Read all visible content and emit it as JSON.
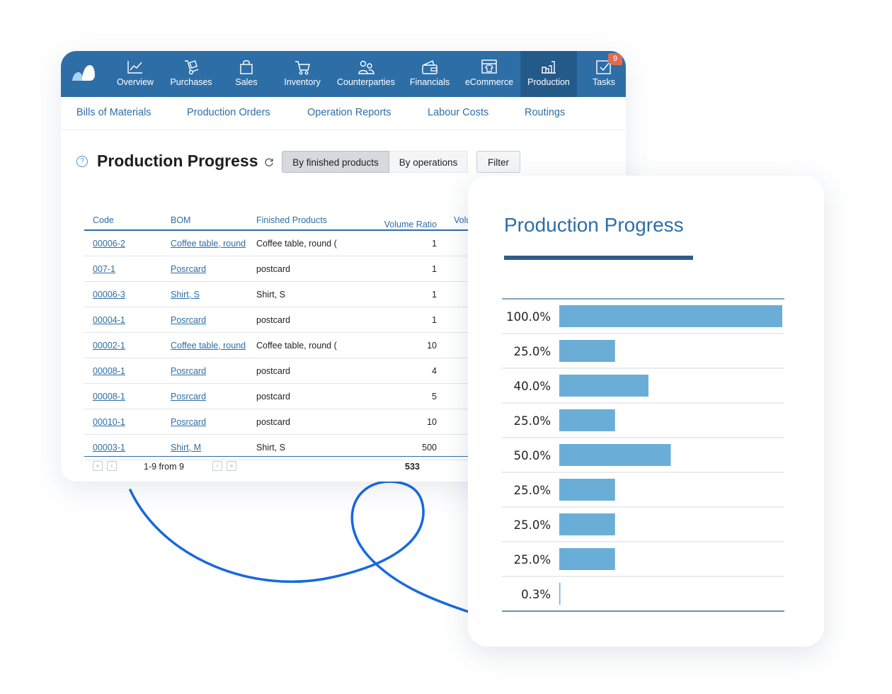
{
  "colors": {
    "nav_bg": "#2e6ea6",
    "nav_active": "#245a8a",
    "link": "#2e6ea6",
    "bar": "#6aaed8",
    "swirl": "#1769e0"
  },
  "nav": {
    "items": [
      {
        "label": "Overview",
        "icon": "chart-line-icon"
      },
      {
        "label": "Purchases",
        "icon": "hand-truck-icon"
      },
      {
        "label": "Sales",
        "icon": "shopping-bag-icon"
      },
      {
        "label": "Inventory",
        "icon": "cart-icon"
      },
      {
        "label": "Counterparties",
        "icon": "people-icon"
      },
      {
        "label": "Financials",
        "icon": "wallet-icon"
      },
      {
        "label": "eCommerce",
        "icon": "storefront-icon"
      },
      {
        "label": "Production",
        "icon": "factory-icon"
      },
      {
        "label": "Tasks",
        "icon": "checkbox-icon"
      }
    ],
    "tasks_badge": "9"
  },
  "subnav": {
    "items": [
      "Bills of Materials",
      "Production Orders",
      "Operation Reports",
      "Labour Costs",
      "Routings"
    ]
  },
  "page": {
    "title": "Production Progress",
    "help": "?",
    "view_by_finished": "By finished products",
    "view_by_operations": "By operations",
    "filter_label": "Filter"
  },
  "table": {
    "headers": {
      "code": "Code",
      "bom": "BOM",
      "finished": "Finished Products",
      "ratio": "Volume Ratio",
      "volume": "Volume"
    },
    "rows": [
      {
        "code": "00006-2",
        "bom": "Coffee table, round",
        "finished": "Coffee table, round (",
        "ratio": "1"
      },
      {
        "code": "007-1",
        "bom": "Posrcard",
        "finished": "postcard",
        "ratio": "1"
      },
      {
        "code": "00006-3",
        "bom": "Shirt, S",
        "finished": "Shirt, S",
        "ratio": "1"
      },
      {
        "code": "00004-1",
        "bom": "Posrcard",
        "finished": "postcard",
        "ratio": "1"
      },
      {
        "code": "00002-1",
        "bom": "Coffee table, round",
        "finished": "Coffee table, round (",
        "ratio": "10"
      },
      {
        "code": "00008-1",
        "bom": "Posrcard",
        "finished": "postcard",
        "ratio": "4"
      },
      {
        "code": "00008-1",
        "bom": "Posrcard",
        "finished": "postcard",
        "ratio": "5"
      },
      {
        "code": "00010-1",
        "bom": "Posrcard",
        "finished": "postcard",
        "ratio": "10"
      },
      {
        "code": "00003-1",
        "bom": "Shirt, M",
        "finished": "Shirt, S",
        "ratio": "500"
      }
    ],
    "pagination": {
      "text": "1-9 from 9",
      "first": "«",
      "prev": "‹",
      "next": "›",
      "last": "»"
    },
    "total": "533"
  },
  "chart_data": {
    "type": "bar",
    "title": "Production Progress",
    "orientation": "horizontal",
    "categories": [
      "100.0%",
      "25.0%",
      "40.0%",
      "25.0%",
      "50.0%",
      "25.0%",
      "25.0%",
      "25.0%",
      "0.3%"
    ],
    "values": [
      100.0,
      25.0,
      40.0,
      25.0,
      50.0,
      25.0,
      25.0,
      25.0,
      0.3
    ],
    "xlim": [
      0,
      100
    ],
    "grid": true
  }
}
